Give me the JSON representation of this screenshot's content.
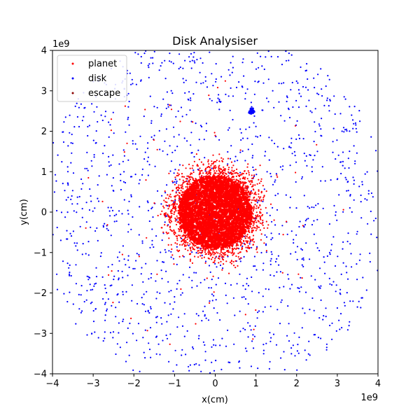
{
  "chart_data": {
    "type": "scatter",
    "title": "Disk Analysiser",
    "xlabel": "x(cm)",
    "ylabel": "y(cm)",
    "x_offset_label": "1e9",
    "y_offset_label": "1e9",
    "xlim": [
      -4,
      4
    ],
    "ylim": [
      -4,
      4
    ],
    "xticks": [
      "−4",
      "−3",
      "−2",
      "−1",
      "0",
      "1",
      "2",
      "3",
      "4"
    ],
    "yticks": [
      "−4",
      "−3",
      "−2",
      "−1",
      "0",
      "1",
      "2",
      "3",
      "4"
    ],
    "grid": false,
    "legend_position": "top-left",
    "series": [
      {
        "name": "planet",
        "color": "#ff0000",
        "distribution": "dense central cluster",
        "center": [
          0,
          0
        ],
        "core_radius": 0.9,
        "extent_radius": 1.3
      },
      {
        "name": "disk",
        "color": "#0000ff",
        "distribution": "scattered disk",
        "extent_radius": 4.2,
        "clump": [
          0.9,
          2.5
        ]
      },
      {
        "name": "escape",
        "color": "#8b0000",
        "distribution": "sparse",
        "points": []
      }
    ]
  }
}
